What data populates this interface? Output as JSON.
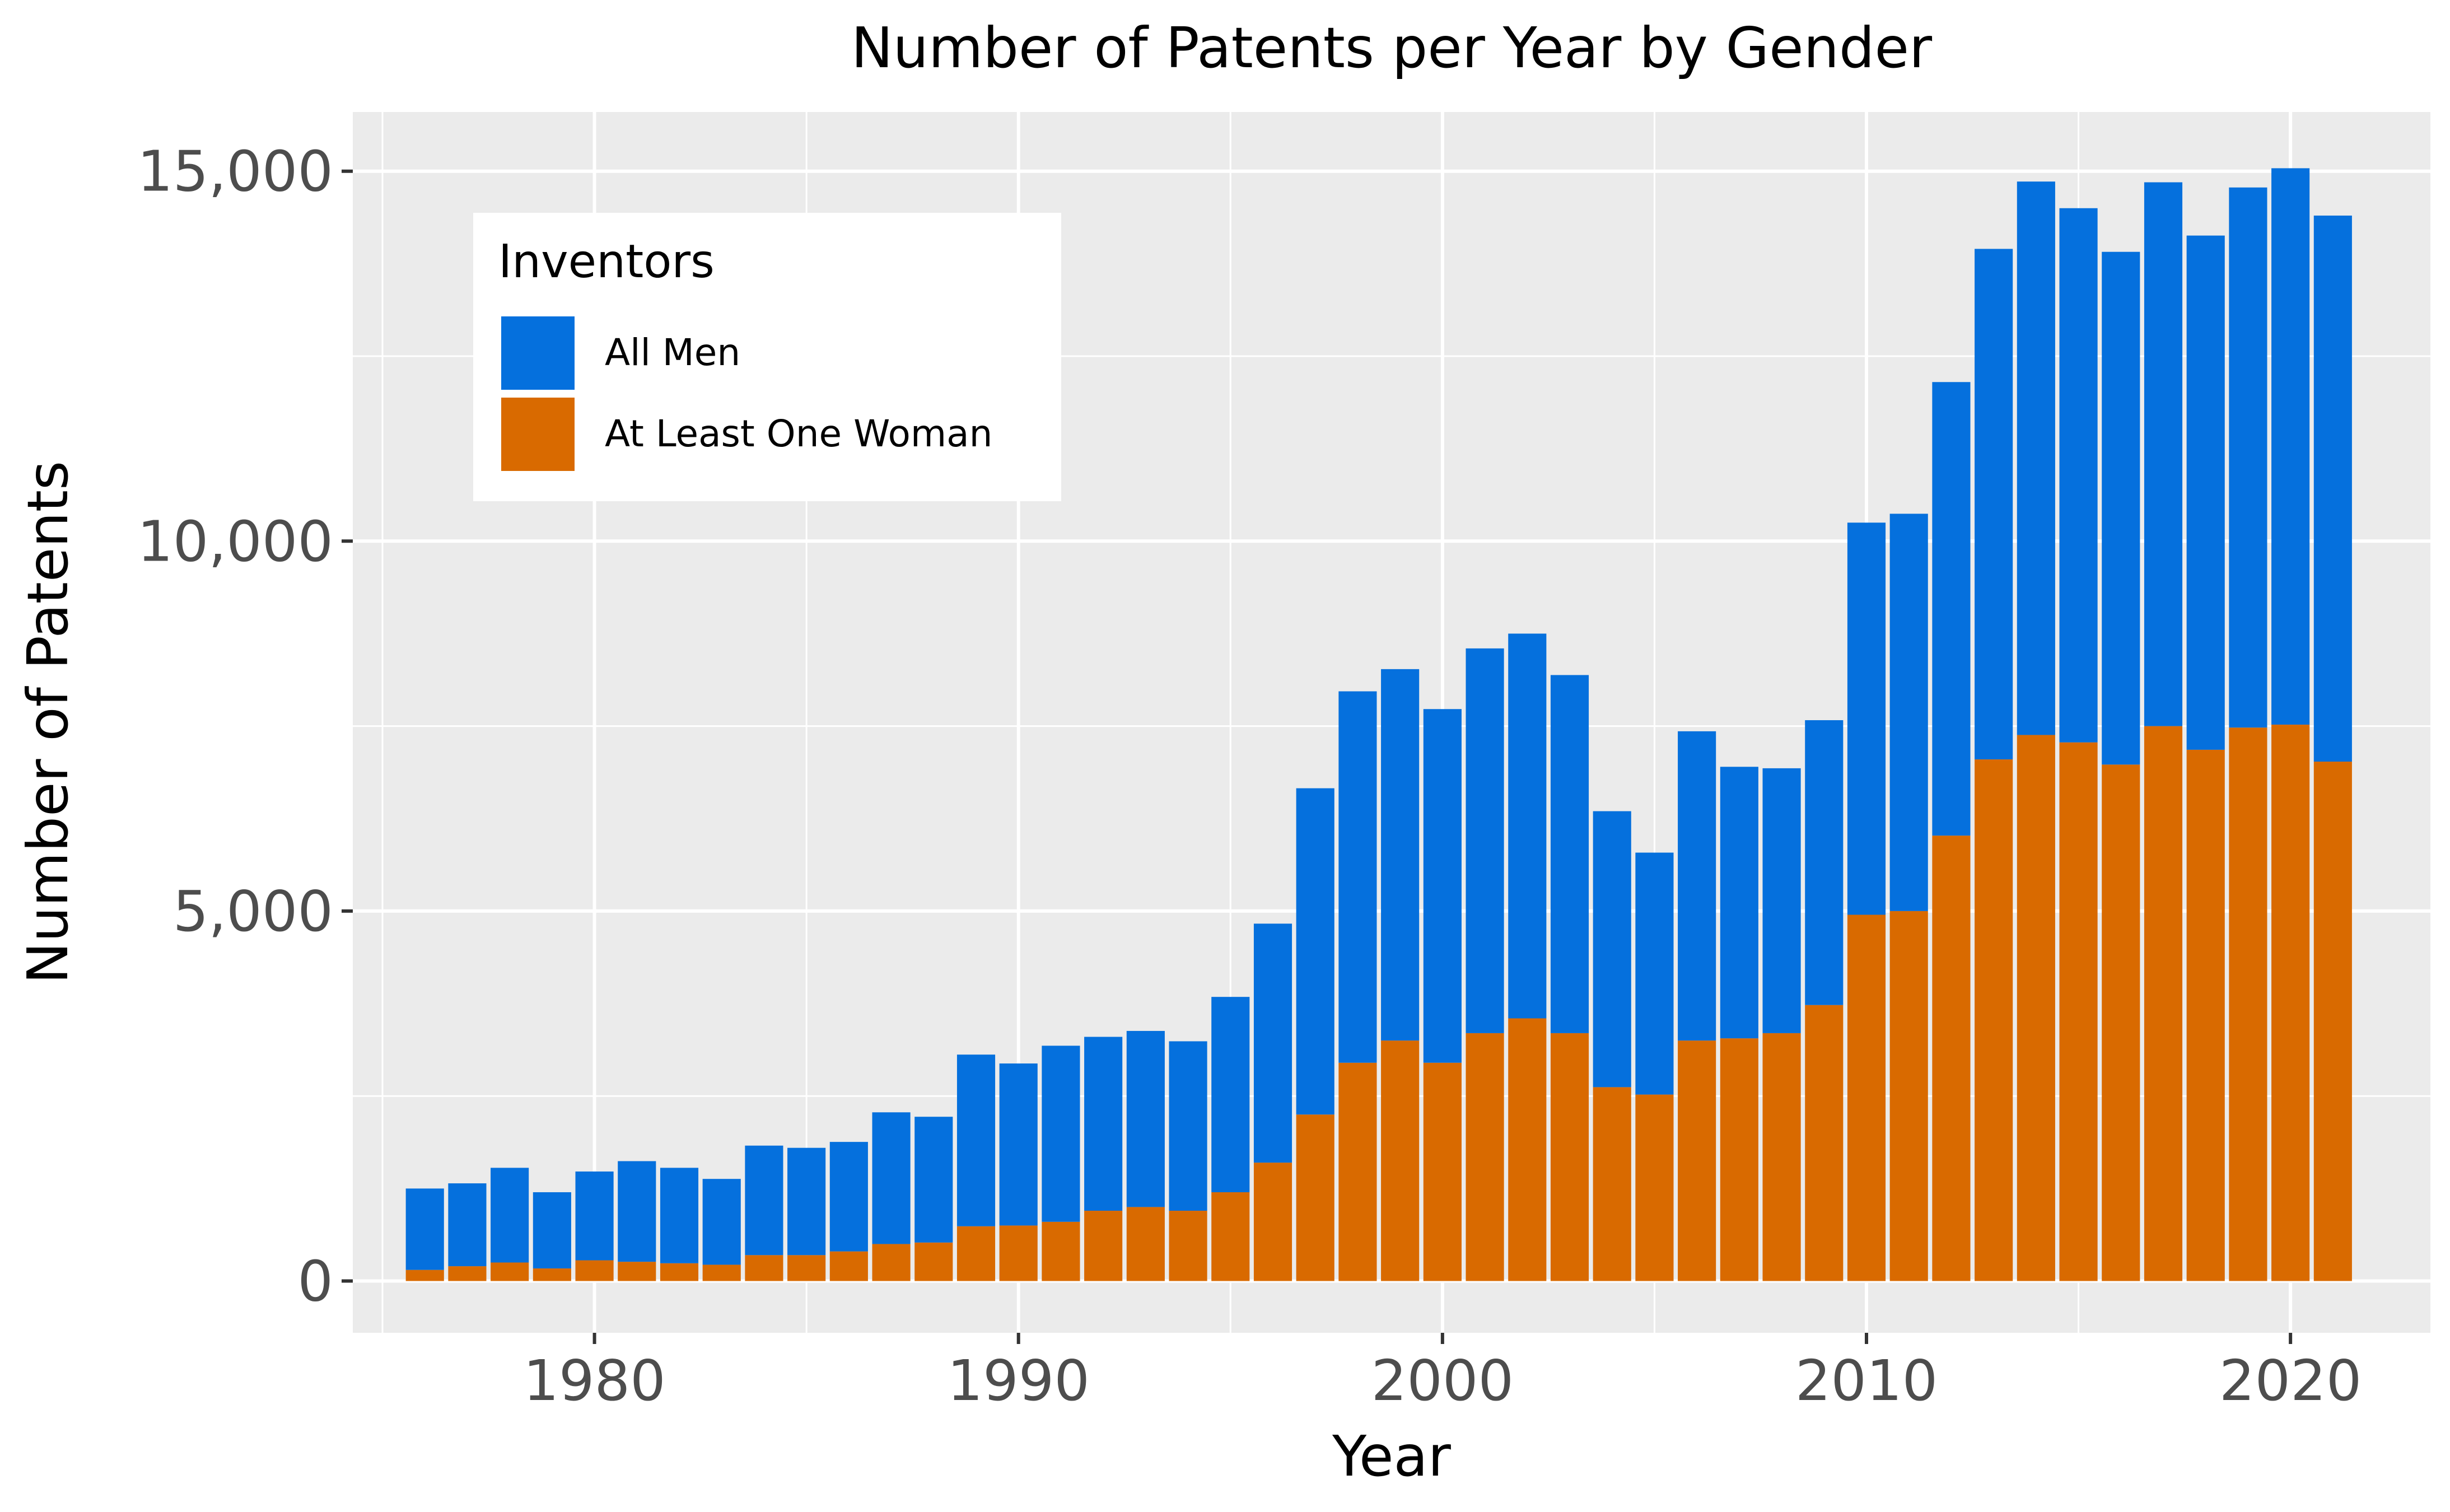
{
  "chart_data": {
    "type": "bar",
    "stacked": true,
    "title": "Number of Patents per Year by Gender",
    "xlabel": "Year",
    "ylabel": "Number of Patents",
    "xlim": [
      1974.3,
      2023.3
    ],
    "ylim": [
      -700,
      15800
    ],
    "x_ticks": [
      1980,
      1990,
      2000,
      2010,
      2020
    ],
    "y_ticks": [
      0,
      5000,
      10000,
      15000
    ],
    "y_tick_labels": [
      "0",
      "5,000",
      "10,000",
      "15,000"
    ],
    "grid": true,
    "legend": {
      "title": "Inventors",
      "position": "top-left",
      "entries": [
        "All Men",
        "At Least One Woman"
      ]
    },
    "colors": {
      "all_men": "#0570DD",
      "at_least_one_woman": "#D96A00",
      "panel": "#EBEBEB",
      "grid": "#FFFFFF",
      "tick_text": "#4D4D4D"
    },
    "x": [
      1976,
      1977,
      1978,
      1979,
      1980,
      1981,
      1982,
      1983,
      1984,
      1985,
      1986,
      1987,
      1988,
      1989,
      1990,
      1991,
      1992,
      1993,
      1994,
      1995,
      1996,
      1997,
      1998,
      1999,
      2000,
      2001,
      2002,
      2003,
      2004,
      2005,
      2006,
      2007,
      2008,
      2009,
      2010,
      2011,
      2012,
      2013,
      2014,
      2015,
      2016,
      2017,
      2018,
      2019,
      2020,
      2021
    ],
    "series": [
      {
        "name": "At Least One Woman",
        "values": [
          150,
          200,
          250,
          170,
          280,
          260,
          240,
          220,
          350,
          350,
          400,
          500,
          520,
          740,
          750,
          800,
          950,
          1000,
          950,
          1200,
          1600,
          2250,
          2950,
          3250,
          2950,
          3350,
          3550,
          3350,
          2620,
          2520,
          3250,
          3280,
          3350,
          3730,
          4950,
          5000,
          6020,
          7050,
          7380,
          7280,
          6980,
          7500,
          7180,
          7480,
          7520,
          7020
        ]
      },
      {
        "name": "All Men",
        "values": [
          1100,
          1120,
          1280,
          1030,
          1200,
          1360,
          1290,
          1160,
          1480,
          1450,
          1480,
          1780,
          1700,
          2320,
          2190,
          2380,
          2350,
          2380,
          2290,
          2640,
          3230,
          4410,
          5020,
          5020,
          4780,
          5200,
          5200,
          4840,
          3730,
          3270,
          4180,
          3670,
          3580,
          3850,
          5300,
          5370,
          6130,
          6900,
          7480,
          7220,
          6930,
          7350,
          6950,
          7300,
          7520,
          7380
        ]
      }
    ]
  }
}
